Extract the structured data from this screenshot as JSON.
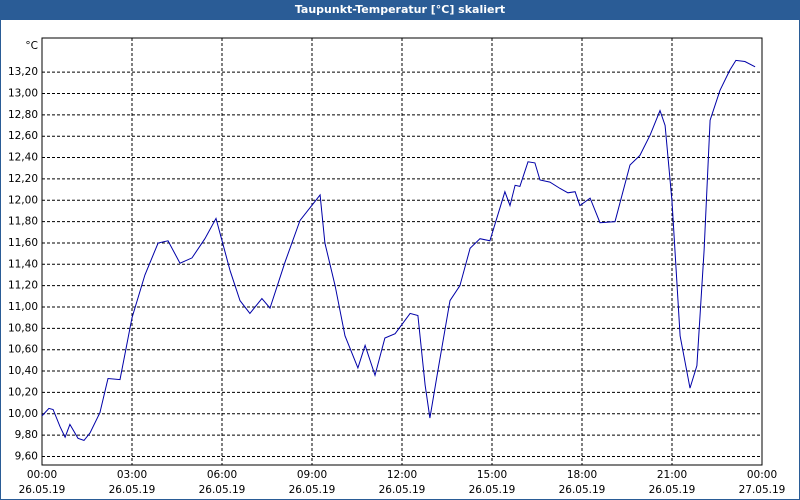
{
  "chart_data": {
    "type": "line",
    "title": "Taupunkt-Temperatur [°C] skaliert",
    "y_unit": "°C",
    "xlim": [
      0,
      24
    ],
    "xticks": [
      {
        "value": 0,
        "label": "00:00"
      },
      {
        "value": 3,
        "label": "03:00"
      },
      {
        "value": 6,
        "label": "06:00"
      },
      {
        "value": 9,
        "label": "09:00"
      },
      {
        "value": 12,
        "label": "12:00"
      },
      {
        "value": 15,
        "label": "15:00"
      },
      {
        "value": 18,
        "label": "18:00"
      },
      {
        "value": 21,
        "label": "21:00"
      },
      {
        "value": 24,
        "label": "00:00"
      }
    ],
    "xtick_dates": [
      "26.05.19",
      "26.05.19",
      "26.05.19",
      "26.05.19",
      "26.05.19",
      "26.05.19",
      "26.05.19",
      "26.05.19",
      "27.05.19"
    ],
    "ylim": [
      9.52,
      13.52
    ],
    "yticks": [
      {
        "value": 9.6,
        "label": "9,60"
      },
      {
        "value": 9.8,
        "label": "9,80"
      },
      {
        "value": 10.0,
        "label": "10,00"
      },
      {
        "value": 10.2,
        "label": "10,20"
      },
      {
        "value": 10.4,
        "label": "10,40"
      },
      {
        "value": 10.6,
        "label": "10,60"
      },
      {
        "value": 10.8,
        "label": "10,80"
      },
      {
        "value": 11.0,
        "label": "11,00"
      },
      {
        "value": 11.2,
        "label": "11,20"
      },
      {
        "value": 11.4,
        "label": "11,40"
      },
      {
        "value": 11.6,
        "label": "11,60"
      },
      {
        "value": 11.8,
        "label": "11,80"
      },
      {
        "value": 12.0,
        "label": "12,00"
      },
      {
        "value": 12.2,
        "label": "12,20"
      },
      {
        "value": 12.4,
        "label": "12,40"
      },
      {
        "value": 12.6,
        "label": "12,60"
      },
      {
        "value": 12.8,
        "label": "12,80"
      },
      {
        "value": 13.0,
        "label": "13,00"
      },
      {
        "value": 13.2,
        "label": "13,20"
      }
    ],
    "grid": true,
    "color": "#0000a8",
    "x": [
      0,
      0.23,
      0.37,
      0.6,
      0.77,
      0.93,
      1.2,
      1.4,
      1.6,
      1.93,
      2.2,
      2.6,
      3.0,
      3.43,
      3.87,
      4.2,
      4.6,
      5.0,
      5.43,
      5.8,
      6.27,
      6.6,
      6.93,
      7.33,
      7.6,
      8.1,
      8.6,
      9.27,
      9.43,
      9.77,
      10.1,
      10.53,
      10.77,
      11.1,
      11.43,
      11.77,
      12.27,
      12.53,
      12.77,
      12.93,
      13.17,
      13.6,
      13.93,
      14.27,
      14.6,
      14.93,
      15.43,
      15.6,
      15.77,
      15.93,
      16.2,
      16.43,
      16.6,
      16.93,
      17.27,
      17.53,
      17.77,
      17.93,
      18.27,
      18.6,
      19.1,
      19.6,
      19.93,
      20.27,
      20.6,
      20.77,
      21.0,
      21.27,
      21.6,
      21.83,
      22.07,
      22.27,
      22.6,
      22.93,
      23.13,
      23.43,
      23.77
    ],
    "values": [
      9.98,
      10.05,
      10.04,
      9.88,
      9.78,
      9.9,
      9.77,
      9.75,
      9.82,
      10.01,
      10.33,
      10.32,
      10.9,
      11.3,
      11.6,
      11.62,
      11.41,
      11.46,
      11.64,
      11.83,
      11.34,
      11.06,
      10.94,
      11.08,
      10.99,
      11.42,
      11.81,
      12.05,
      11.6,
      11.2,
      10.73,
      10.43,
      10.64,
      10.36,
      10.71,
      10.75,
      10.94,
      10.92,
      10.27,
      9.96,
      10.36,
      11.06,
      11.2,
      11.55,
      11.64,
      11.62,
      12.08,
      11.95,
      12.14,
      12.13,
      12.36,
      12.35,
      12.19,
      12.17,
      12.11,
      12.07,
      12.08,
      11.95,
      12.02,
      11.79,
      11.8,
      12.33,
      12.42,
      12.61,
      12.84,
      12.7,
      11.99,
      10.73,
      10.24,
      10.45,
      11.53,
      12.75,
      13.03,
      13.22,
      13.31,
      13.3,
      13.25
    ]
  }
}
